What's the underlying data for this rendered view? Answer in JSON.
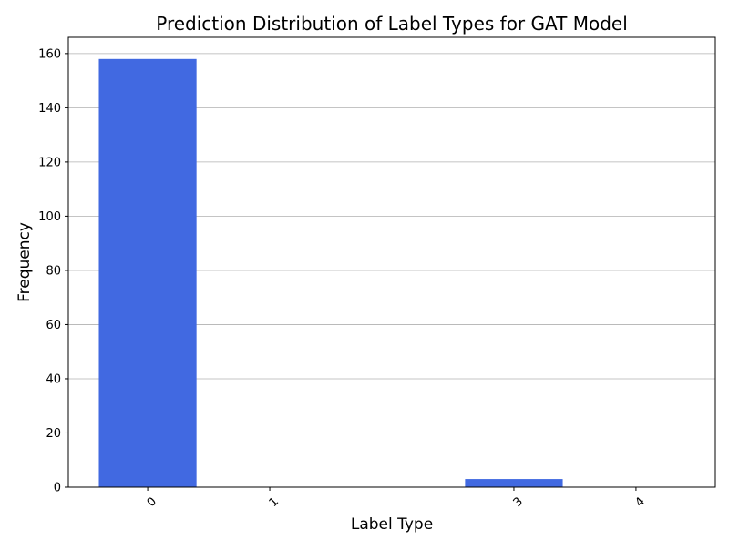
{
  "chart_data": {
    "type": "bar",
    "title": "Prediction Distribution of Label Types for GAT Model",
    "xlabel": "Label Type",
    "ylabel": "Frequency",
    "categories": [
      "0",
      "1",
      "3",
      "4"
    ],
    "x": [
      0,
      1,
      3,
      4
    ],
    "values": [
      158,
      0,
      3,
      0
    ],
    "xlim": [
      -0.65,
      4.65
    ],
    "ylim": [
      0,
      166
    ],
    "yticks": [
      0,
      20,
      40,
      60,
      80,
      100,
      120,
      140,
      160
    ],
    "grid": "y",
    "legend": "none",
    "xtick_rotation": 45,
    "colors": {
      "bar": "#4169e1",
      "grid": "#b0b0b0",
      "axis": "#000000"
    }
  }
}
